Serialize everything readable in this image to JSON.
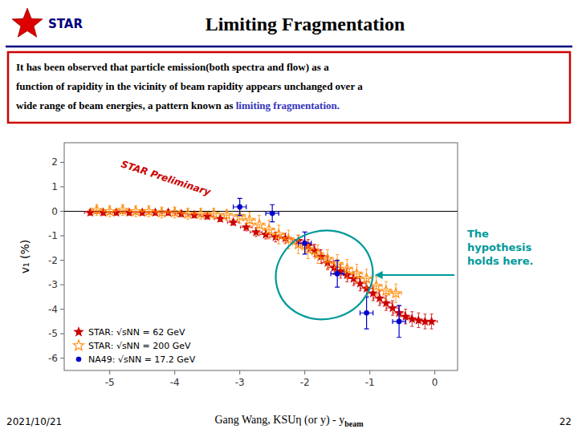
{
  "chart_data": {
    "type": "scatter",
    "title": "Limiting Fragmentation",
    "ylabel": "v₁ (%)",
    "annotations": {
      "logo": "STAR",
      "watermark": "STAR Preliminary",
      "note": "The\nhypothesis\nholds here.",
      "text_box": [
        "It has been observed that particle emission(both spectra and flow) as a",
        "function of rapidity in the vicinity of beam rapidity appears unchanged over a"
      ],
      "text_box_last": [
        "wide range of beam energies, a pattern known as ",
        "limiting fragmentation",
        "."
      ],
      "footer_left": "2021/10/21",
      "footer_center": [
        "Gang Wang, KSUη (or y) - y",
        "beam"
      ],
      "footer_right": "22"
    },
    "highlight": {
      "x": -1.7,
      "y": -2.6,
      "width": 1.5,
      "height": 3.6
    },
    "xlim": [
      -5.7,
      0.35
    ],
    "ylim": [
      -6.5,
      2.8
    ],
    "xticks": [
      -5,
      -4,
      -3,
      -2,
      -1,
      0
    ],
    "yticks": [
      -6,
      -5,
      -4,
      -3,
      -2,
      -1,
      0,
      1,
      2
    ],
    "grid": false,
    "legend": "lower left",
    "series": [
      {
        "name": "STAR: √sNN = 62 GeV",
        "color": "#cc0000",
        "marker": "star",
        "x": [
          -5.3,
          -5.1,
          -4.9,
          -4.7,
          -4.5,
          -4.3,
          -4.1,
          -3.9,
          -3.7,
          -3.5,
          -3.3,
          -3.1,
          -2.9,
          -2.75,
          -2.6,
          -2.45,
          -2.3,
          -2.1,
          -1.95,
          -1.85,
          -1.75,
          -1.65,
          -1.55,
          -1.45,
          -1.35,
          -1.25,
          -1.15,
          -1.05,
          -0.95,
          -0.85,
          -0.75,
          -0.65,
          -0.55,
          -0.45,
          -0.35,
          -0.25,
          -0.15,
          -0.05
        ],
        "values": [
          -0.05,
          -0.05,
          -0.05,
          -0.05,
          -0.05,
          -0.05,
          -0.05,
          -0.1,
          -0.15,
          -0.2,
          -0.3,
          -0.45,
          -0.65,
          -0.85,
          -0.95,
          -1.05,
          -1.1,
          -1.2,
          -1.4,
          -1.6,
          -1.85,
          -2.1,
          -2.3,
          -2.45,
          -2.6,
          -2.75,
          -2.95,
          -3.15,
          -3.35,
          -3.55,
          -3.75,
          -3.95,
          -4.15,
          -4.3,
          -4.4,
          -4.45,
          -4.5,
          -4.5
        ],
        "errors": [
          0.12,
          0.12,
          0.12,
          0.12,
          0.12,
          0.12,
          0.12,
          0.12,
          0.12,
          0.12,
          0.12,
          0.12,
          0.15,
          0.18,
          0.18,
          0.2,
          0.2,
          0.22,
          0.25,
          0.25,
          0.28,
          0.28,
          0.28,
          0.28,
          0.28,
          0.28,
          0.3,
          0.3,
          0.3,
          0.3,
          0.3,
          0.3,
          0.3,
          0.3,
          0.3,
          0.3,
          0.3,
          0.3
        ],
        "x_errors": [
          0.09,
          0.09,
          0.09,
          0.09,
          0.09,
          0.09,
          0.09,
          0.09,
          0.09,
          0.09,
          0.09,
          0.09,
          0.09,
          0.09,
          0.09,
          0.09,
          0.09,
          0.09,
          0.09,
          0.09,
          0.09,
          0.09,
          0.09,
          0.09,
          0.09,
          0.09,
          0.09,
          0.09,
          0.09,
          0.09,
          0.09,
          0.09,
          0.09,
          0.09,
          0.09,
          0.09,
          0.09,
          0.09
        ]
      },
      {
        "name": "STAR: √sNN = 200 GeV",
        "color": "#ff8800",
        "marker": "open-star",
        "x": [
          -5.2,
          -5.0,
          -4.8,
          -4.6,
          -4.4,
          -4.2,
          -4.0,
          -3.8,
          -3.6,
          -3.4,
          -3.2,
          -3.0,
          -2.85,
          -2.7,
          -2.55,
          -2.4,
          -2.25,
          -2.1,
          -1.95,
          -1.8,
          -1.65,
          -1.5,
          -1.35,
          -1.2,
          -1.05,
          -0.9,
          -0.75,
          -0.6
        ],
        "values": [
          0.05,
          0.0,
          0.05,
          0.0,
          0.0,
          -0.05,
          -0.05,
          -0.1,
          -0.1,
          -0.1,
          -0.15,
          -0.2,
          -0.35,
          -0.55,
          -0.75,
          -0.95,
          -1.15,
          -1.35,
          -1.55,
          -1.75,
          -1.95,
          -2.15,
          -2.35,
          -2.55,
          -2.75,
          -3.05,
          -3.25,
          -3.35
        ],
        "errors": [
          0.22,
          0.22,
          0.22,
          0.22,
          0.22,
          0.22,
          0.22,
          0.22,
          0.22,
          0.22,
          0.22,
          0.28,
          0.32,
          0.38,
          0.38,
          0.38,
          0.38,
          0.38,
          0.38,
          0.38,
          0.38,
          0.38,
          0.38,
          0.38,
          0.38,
          0.38,
          0.38,
          0.38
        ],
        "x_errors": [
          0.09,
          0.09,
          0.09,
          0.09,
          0.09,
          0.09,
          0.09,
          0.09,
          0.09,
          0.09,
          0.09,
          0.09,
          0.09,
          0.09,
          0.09,
          0.09,
          0.09,
          0.09,
          0.09,
          0.09,
          0.09,
          0.09,
          0.09,
          0.09,
          0.09,
          0.09,
          0.09,
          0.09
        ]
      },
      {
        "name": "NA49: √sNN = 17.2 GeV",
        "color": "#0000cc",
        "marker": "circle",
        "x": [
          -3.0,
          -2.5,
          -2.0,
          -1.5,
          -1.05,
          -0.55
        ],
        "values": [
          0.18,
          -0.08,
          -1.3,
          -2.55,
          -4.15,
          -4.5
        ],
        "errors": [
          0.35,
          0.35,
          0.45,
          0.55,
          0.65,
          0.65
        ],
        "x_errors": [
          0.1,
          0.1,
          0.1,
          0.1,
          0.1,
          0.1
        ]
      }
    ]
  }
}
